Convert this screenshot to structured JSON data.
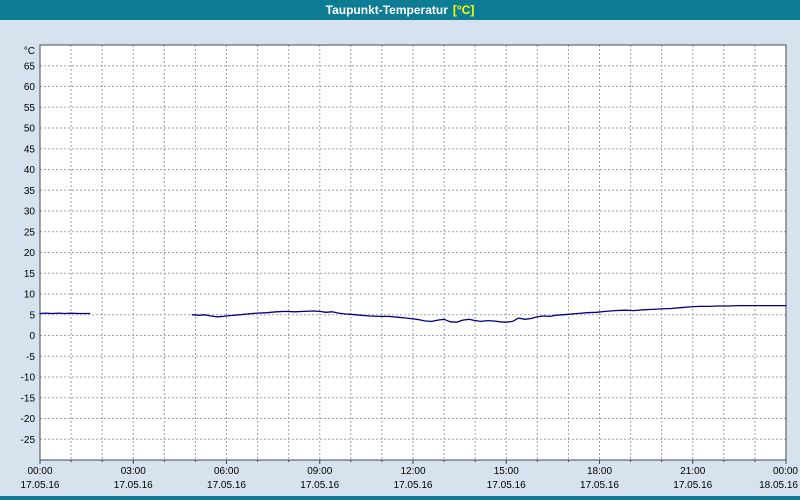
{
  "window": {
    "title_main": "Taupunkt-Temperatur",
    "title_unit": "[°C]"
  },
  "colors": {
    "titlebar": "#0d7c94",
    "titlebar_text": "#ffffff",
    "titlebar_unit": "#ffff00",
    "background": "#d6e2ee",
    "plot_background": "#ffffff",
    "grid": "#9aa2aa",
    "plot_border": "#3c4c54",
    "axis_label": "#000000",
    "line": "#000080"
  },
  "chart_data": {
    "type": "line",
    "title": "Taupunkt-Temperatur [°C]",
    "xlabel": "",
    "ylabel": "°C",
    "ylim": [
      -30,
      70
    ],
    "ytick_min": -25,
    "ytick_max": 65,
    "ytick_step": 5,
    "xlim_hours": [
      0,
      24
    ],
    "grid": "dashed",
    "legend": "none",
    "xticks": [
      {
        "hour": 0,
        "time": "00:00",
        "date": "17.05.16"
      },
      {
        "hour": 3,
        "time": "03:00",
        "date": "17.05.16"
      },
      {
        "hour": 6,
        "time": "06:00",
        "date": "17.05.16"
      },
      {
        "hour": 9,
        "time": "09:00",
        "date": "17.05.16"
      },
      {
        "hour": 12,
        "time": "12:00",
        "date": "17.05.16"
      },
      {
        "hour": 15,
        "time": "15:00",
        "date": "17.05.16"
      },
      {
        "hour": 18,
        "time": "18:00",
        "date": "17.05.16"
      },
      {
        "hour": 21,
        "time": "21:00",
        "date": "17.05.16"
      },
      {
        "hour": 24,
        "time": "00:00",
        "date": "18.05.16"
      }
    ],
    "series": [
      {
        "name": "Taupunkt-Temperatur",
        "unit": "°C",
        "color": "#000080",
        "segments": [
          [
            [
              0,
              5.3
            ],
            [
              0.2,
              5.4
            ],
            [
              0.4,
              5.3
            ],
            [
              0.6,
              5.4
            ],
            [
              0.8,
              5.3
            ],
            [
              1.0,
              5.4
            ],
            [
              1.2,
              5.3
            ],
            [
              1.4,
              5.3
            ],
            [
              1.6,
              5.3
            ]
          ],
          [
            [
              4.9,
              5.0
            ],
            [
              5.1,
              4.9
            ],
            [
              5.3,
              5.0
            ],
            [
              5.5,
              4.7
            ],
            [
              5.7,
              4.5
            ],
            [
              5.9,
              4.6
            ],
            [
              6.1,
              4.8
            ],
            [
              6.4,
              5.0
            ],
            [
              6.7,
              5.2
            ],
            [
              7.0,
              5.4
            ],
            [
              7.3,
              5.5
            ],
            [
              7.6,
              5.7
            ],
            [
              7.9,
              5.8
            ],
            [
              8.2,
              5.7
            ],
            [
              8.5,
              5.8
            ],
            [
              8.8,
              5.9
            ],
            [
              9.0,
              5.8
            ],
            [
              9.2,
              5.6
            ],
            [
              9.4,
              5.7
            ],
            [
              9.6,
              5.4
            ],
            [
              9.8,
              5.2
            ],
            [
              10.0,
              5.1
            ],
            [
              10.3,
              4.9
            ],
            [
              10.6,
              4.7
            ],
            [
              10.9,
              4.6
            ],
            [
              11.2,
              4.6
            ],
            [
              11.5,
              4.4
            ],
            [
              11.8,
              4.2
            ],
            [
              12.0,
              4.0
            ],
            [
              12.2,
              3.8
            ],
            [
              12.4,
              3.5
            ],
            [
              12.6,
              3.4
            ],
            [
              12.8,
              3.7
            ],
            [
              13.0,
              3.9
            ],
            [
              13.2,
              3.3
            ],
            [
              13.4,
              3.2
            ],
            [
              13.6,
              3.7
            ],
            [
              13.8,
              3.9
            ],
            [
              14.0,
              3.6
            ],
            [
              14.2,
              3.4
            ],
            [
              14.4,
              3.6
            ],
            [
              14.6,
              3.5
            ],
            [
              14.8,
              3.3
            ],
            [
              15.0,
              3.2
            ],
            [
              15.2,
              3.4
            ],
            [
              15.4,
              4.2
            ],
            [
              15.6,
              3.9
            ],
            [
              15.8,
              4.1
            ],
            [
              16.0,
              4.5
            ],
            [
              16.2,
              4.7
            ],
            [
              16.4,
              4.6
            ],
            [
              16.6,
              4.9
            ],
            [
              16.8,
              5.0
            ],
            [
              17.0,
              5.1
            ],
            [
              17.3,
              5.3
            ],
            [
              17.6,
              5.5
            ],
            [
              17.9,
              5.6
            ],
            [
              18.2,
              5.8
            ],
            [
              18.5,
              6.0
            ],
            [
              18.8,
              6.1
            ],
            [
              19.1,
              6.0
            ],
            [
              19.4,
              6.2
            ],
            [
              19.7,
              6.3
            ],
            [
              20.0,
              6.4
            ],
            [
              20.3,
              6.5
            ],
            [
              20.6,
              6.7
            ],
            [
              20.9,
              6.9
            ],
            [
              21.2,
              7.0
            ],
            [
              21.5,
              7.0
            ],
            [
              21.8,
              7.1
            ],
            [
              22.1,
              7.1
            ],
            [
              22.5,
              7.2
            ],
            [
              23.0,
              7.2
            ],
            [
              23.5,
              7.2
            ],
            [
              24.0,
              7.2
            ]
          ]
        ]
      }
    ]
  }
}
